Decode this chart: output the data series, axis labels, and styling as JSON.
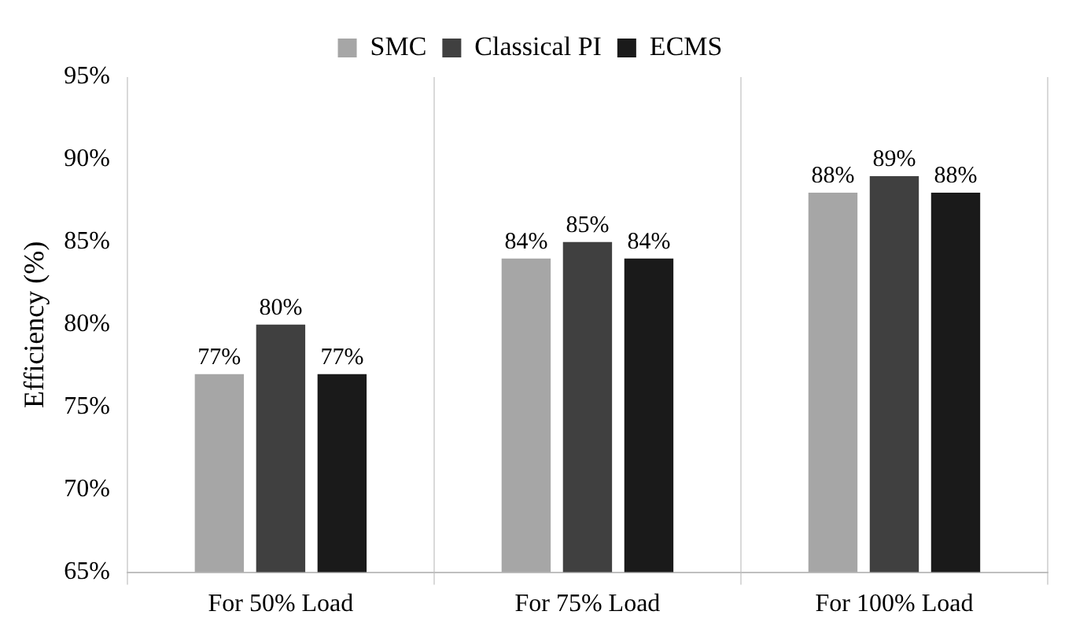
{
  "chart_data": {
    "type": "bar",
    "ylabel": "Efficiency (%)",
    "categories": [
      "For 50% Load",
      "For 75% Load",
      "For 100% Load"
    ],
    "series": [
      {
        "name": "SMC",
        "color": "#a6a6a6",
        "values": [
          77,
          84,
          88
        ],
        "value_labels": [
          "77%",
          "84%",
          "88%"
        ]
      },
      {
        "name": "Classical PI",
        "color": "#404040",
        "values": [
          80,
          85,
          89
        ],
        "value_labels": [
          "80%",
          "85%",
          "89%"
        ]
      },
      {
        "name": "ECMS",
        "color": "#1a1a1a",
        "values": [
          77,
          84,
          88
        ],
        "value_labels": [
          "77%",
          "84%",
          "88%"
        ]
      }
    ],
    "ylim": [
      65,
      95
    ],
    "yticks": [
      {
        "value": 65,
        "label": "65%"
      },
      {
        "value": 70,
        "label": "70%"
      },
      {
        "value": 75,
        "label": "75%"
      },
      {
        "value": 80,
        "label": "80%"
      },
      {
        "value": 85,
        "label": "85%"
      },
      {
        "value": 90,
        "label": "90%"
      },
      {
        "value": 95,
        "label": "95%"
      }
    ],
    "grid": "x",
    "legend": "top"
  }
}
